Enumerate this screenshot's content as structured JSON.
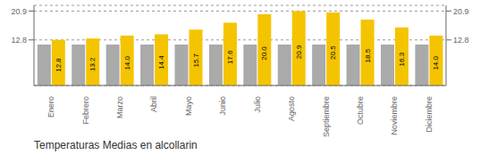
{
  "chart_data": {
    "type": "bar",
    "title": "Temperaturas Medias en alcollarin",
    "categories": [
      "Enero",
      "Febrero",
      "Marzo",
      "Abril",
      "Mayo",
      "Junio",
      "Julio",
      "Agosto",
      "Septiembre",
      "Octubre",
      "Noviembre",
      "Diciembre"
    ],
    "series": [
      {
        "color": "#AAAAAA",
        "values": [
          11.5,
          11.5,
          11.5,
          11.5,
          11.5,
          11.5,
          11.5,
          11.5,
          11.5,
          11.5,
          11.5,
          11.5
        ]
      },
      {
        "color": "#F5C400",
        "values": [
          12.8,
          13.2,
          14.0,
          14.4,
          15.7,
          17.6,
          20.0,
          20.9,
          20.5,
          18.5,
          16.3,
          14.0
        ],
        "value_labels": [
          "12.8",
          "13.2",
          "14.0",
          "14.4",
          "15.7",
          "17.6",
          "20.0",
          "20.9",
          "20.5",
          "18.5",
          "16.3",
          "14.0"
        ],
        "data_labels": true
      }
    ],
    "ylim": [
      0,
      22.5
    ],
    "yticks": [
      12.8,
      20.9
    ],
    "y2lim": [
      0,
      22.5
    ],
    "y2ticks": [
      12.8,
      20.9
    ],
    "grid": true
  }
}
